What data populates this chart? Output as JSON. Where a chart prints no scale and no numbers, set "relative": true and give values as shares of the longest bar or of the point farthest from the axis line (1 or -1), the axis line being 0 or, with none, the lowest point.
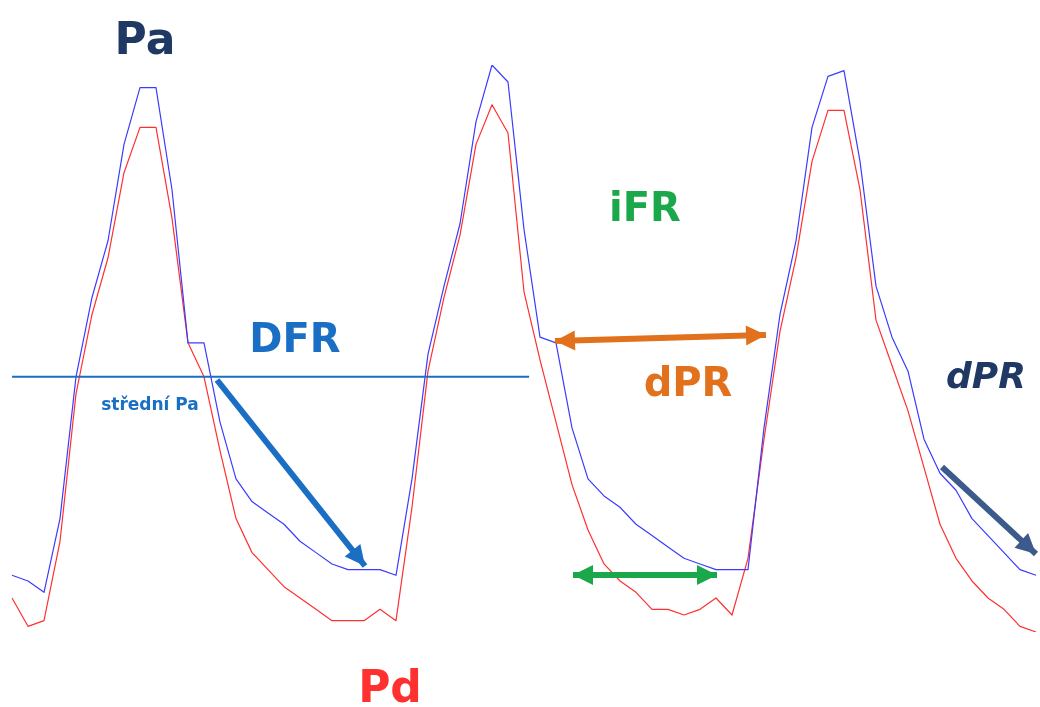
{
  "chart_data": {
    "type": "line",
    "relative": true,
    "marker": "none",
    "categories": [
      null,
      null,
      null,
      null,
      null,
      null,
      null,
      null,
      null,
      null,
      null,
      null,
      null,
      null,
      null,
      null,
      null,
      null,
      null,
      null,
      null,
      null,
      null,
      null,
      null,
      null,
      null,
      null,
      null,
      null,
      null,
      null,
      null,
      null,
      null,
      null,
      null,
      null,
      null,
      null,
      null,
      null,
      null,
      null,
      null,
      null,
      null,
      null,
      null,
      null,
      null,
      null,
      null,
      null,
      null,
      null,
      null,
      null,
      null,
      null,
      null,
      null,
      null,
      null,
      null
    ],
    "series": [
      {
        "name": "Pa",
        "color": "#3b3bff",
        "values": [
          0.1,
          0.09,
          0.07,
          0.2,
          0.45,
          0.59,
          0.69,
          0.86,
          0.96,
          0.96,
          0.78,
          0.51,
          0.51,
          0.37,
          0.27,
          0.23,
          0.21,
          0.19,
          0.16,
          0.14,
          0.12,
          0.11,
          0.11,
          0.11,
          0.1,
          0.27,
          0.49,
          0.61,
          0.72,
          0.9,
          1.0,
          0.97,
          0.71,
          0.52,
          0.51,
          0.36,
          0.27,
          0.24,
          0.22,
          0.19,
          0.17,
          0.15,
          0.13,
          0.12,
          0.11,
          0.11,
          0.11,
          0.36,
          0.56,
          0.69,
          0.89,
          0.98,
          0.99,
          0.83,
          0.61,
          0.52,
          0.46,
          0.34,
          0.28,
          0.25,
          0.2,
          0.17,
          0.14,
          0.11,
          0.1
        ]
      },
      {
        "name": "Pd",
        "color": "#ff3030",
        "values": [
          0.06,
          0.01,
          0.02,
          0.16,
          0.42,
          0.56,
          0.66,
          0.81,
          0.89,
          0.89,
          0.73,
          0.51,
          0.45,
          0.32,
          0.2,
          0.14,
          0.11,
          0.08,
          0.06,
          0.04,
          0.02,
          0.02,
          0.02,
          0.04,
          0.02,
          0.22,
          0.46,
          0.59,
          0.7,
          0.86,
          0.93,
          0.88,
          0.6,
          0.48,
          0.37,
          0.26,
          0.18,
          0.12,
          0.09,
          0.07,
          0.04,
          0.04,
          0.03,
          0.04,
          0.06,
          0.03,
          0.13,
          0.34,
          0.53,
          0.66,
          0.83,
          0.92,
          0.92,
          0.78,
          0.55,
          0.47,
          0.39,
          0.29,
          0.19,
          0.13,
          0.09,
          0.06,
          0.04,
          0.01,
          0
        ]
      }
    ],
    "ref_lines": [
      {
        "axis": "y",
        "value": 0.45,
        "label": "střední Pa",
        "color": "#1a6fc4"
      }
    ],
    "annotations": [
      "DFR",
      "iFR",
      "dPR",
      "dPR"
    ]
  }
}
